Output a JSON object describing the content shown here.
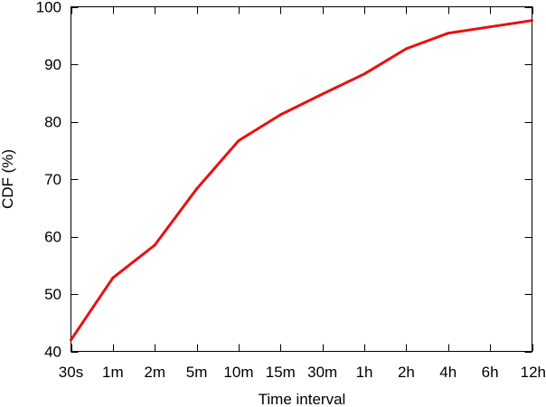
{
  "chart_data": {
    "type": "line",
    "title": "",
    "xlabel": "Time interval",
    "ylabel": "CDF (%)",
    "categories": [
      "30s",
      "1m",
      "2m",
      "5m",
      "10m",
      "15m",
      "30m",
      "1h",
      "2h",
      "4h",
      "6h",
      "12h"
    ],
    "ylim": [
      40,
      100
    ],
    "yticks": [
      "40",
      "50",
      "60",
      "70",
      "80",
      "90",
      "100"
    ],
    "grid": false,
    "legend": "none",
    "series": [
      {
        "color": "#e81010",
        "values": [
          42.0,
          52.8,
          58.5,
          68.3,
          76.7,
          81.2,
          84.8,
          88.3,
          92.7,
          95.4,
          96.5,
          97.6
        ]
      }
    ]
  }
}
